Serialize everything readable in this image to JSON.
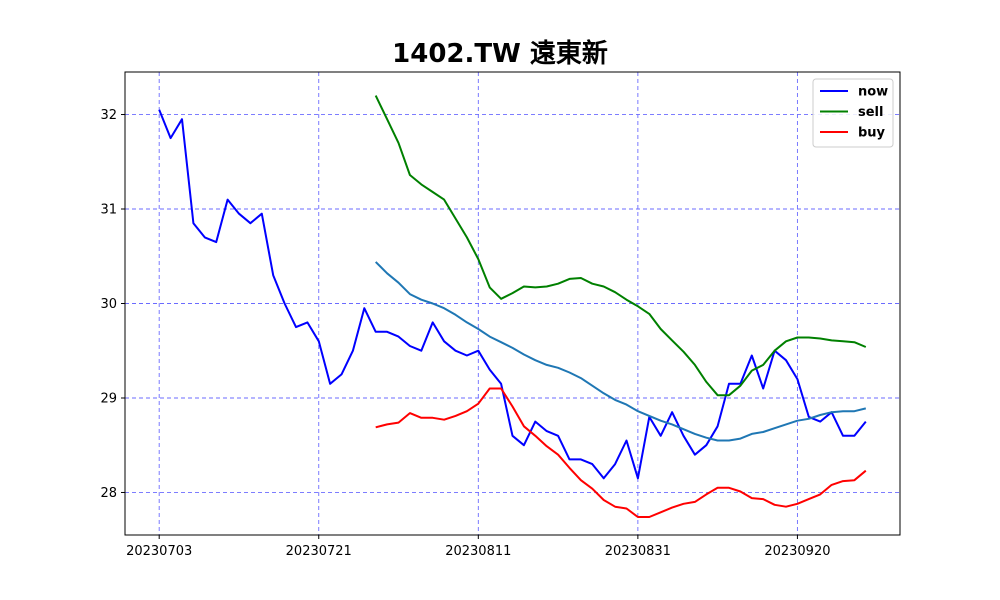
{
  "chart_data": {
    "type": "line",
    "title": "1402.TW 遠東新",
    "xlabel": "",
    "ylabel": "",
    "x_tick_labels": [
      "20230703",
      "20230721",
      "20230811",
      "20230831",
      "20230920"
    ],
    "x_tick_indices": [
      0,
      14,
      28,
      42,
      56
    ],
    "y_ticks": [
      28,
      29,
      30,
      31,
      32
    ],
    "ylim": [
      27.55,
      32.45
    ],
    "xlim": [
      -3,
      65
    ],
    "grid": true,
    "legend_position": "top-right",
    "colors": {
      "now": "#0000ff",
      "sell": "#008000",
      "buy": "#ff0000",
      "ma": "#1f77b4",
      "grid": "#6b6bff"
    },
    "series": [
      {
        "name": "now",
        "color": "#0000ff",
        "start_index": 0,
        "values": [
          32.05,
          31.75,
          31.95,
          30.85,
          30.7,
          30.65,
          31.1,
          30.95,
          30.85,
          30.95,
          30.3,
          30.0,
          29.75,
          29.8,
          29.6,
          29.15,
          29.25,
          29.5,
          29.95,
          29.7,
          29.7,
          29.65,
          29.55,
          29.5,
          29.8,
          29.6,
          29.5,
          29.45,
          29.5,
          29.3,
          29.15,
          28.6,
          28.5,
          28.75,
          28.65,
          28.6,
          28.35,
          28.35,
          28.3,
          28.15,
          28.3,
          28.55,
          28.15,
          28.8,
          28.6,
          28.85,
          28.6,
          28.4,
          28.5,
          28.7,
          29.15,
          29.15,
          29.45,
          29.1,
          29.5,
          29.4,
          29.2,
          28.8,
          28.75,
          28.85,
          28.6,
          28.6,
          28.75
        ]
      },
      {
        "name": "sell",
        "color": "#008000",
        "start_index": 19,
        "values": [
          32.2,
          31.95,
          31.7,
          31.36,
          31.26,
          31.18,
          31.1,
          30.9,
          30.7,
          30.47,
          30.17,
          30.05,
          30.11,
          30.18,
          30.17,
          30.18,
          30.21,
          30.26,
          30.27,
          30.21,
          30.18,
          30.12,
          30.04,
          29.97,
          29.89,
          29.73,
          29.61,
          29.49,
          29.35,
          29.17,
          29.03,
          29.03,
          29.13,
          29.29,
          29.35,
          29.5,
          29.6,
          29.64,
          29.64,
          29.63,
          29.61,
          29.6,
          29.59,
          29.54
        ]
      },
      {
        "name": "buy",
        "color": "#ff0000",
        "start_index": 19,
        "values": [
          28.69,
          28.72,
          28.74,
          28.84,
          28.79,
          28.79,
          28.77,
          28.81,
          28.86,
          28.94,
          29.1,
          29.1,
          28.91,
          28.7,
          28.6,
          28.49,
          28.4,
          28.26,
          28.13,
          28.04,
          27.92,
          27.85,
          27.83,
          27.74,
          27.74,
          27.79,
          27.84,
          27.88,
          27.9,
          27.98,
          28.05,
          28.05,
          28.01,
          27.94,
          27.93,
          27.87,
          27.85,
          27.88,
          27.93,
          27.98,
          28.08,
          28.12,
          28.13,
          28.23
        ]
      },
      {
        "start_index": 19,
        "color": "#1f77b4",
        "values": [
          30.44,
          30.32,
          30.22,
          30.1,
          30.04,
          30.0,
          29.95,
          29.88,
          29.8,
          29.73,
          29.65,
          29.59,
          29.53,
          29.46,
          29.4,
          29.35,
          29.32,
          29.27,
          29.21,
          29.13,
          29.05,
          28.98,
          28.93,
          28.86,
          28.81,
          28.76,
          28.72,
          28.67,
          28.62,
          28.58,
          28.55,
          28.55,
          28.57,
          28.62,
          28.64,
          28.68,
          28.72,
          28.76,
          28.78,
          28.82,
          28.85,
          28.86,
          28.86,
          28.89
        ]
      }
    ]
  }
}
